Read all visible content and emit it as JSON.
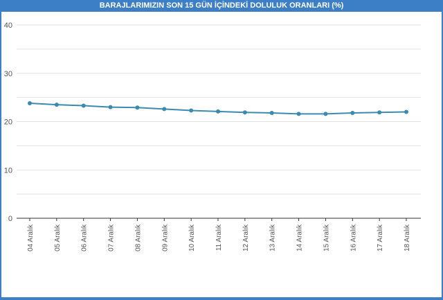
{
  "chart_data": {
    "type": "line",
    "title": "BARAJLARIMIZIN SON 15 GÜN İÇİNDEKİ DOLULUK ORANLARI (%)",
    "xlabel": "",
    "ylabel": "",
    "categories": [
      "04 Aralık",
      "05 Aralık",
      "06 Aralık",
      "07 Aralık",
      "08 Aralık",
      "09 Aralık",
      "10 Aralık",
      "11 Aralık",
      "12 Aralık",
      "13 Aralık",
      "14 Aralık",
      "15 Aralık",
      "16 Aralık",
      "17 Aralık",
      "18 Aralık"
    ],
    "series": [
      {
        "values": [
          23.8,
          23.5,
          23.3,
          23.0,
          22.9,
          22.6,
          22.3,
          22.1,
          21.9,
          21.8,
          21.6,
          21.6,
          21.8,
          21.9,
          22.0
        ]
      }
    ],
    "ylim": [
      0,
      40
    ],
    "yticks": [
      0,
      10,
      20,
      30,
      40
    ],
    "grid": true,
    "legend": "none",
    "colors": {
      "line": "#3b8ab0",
      "title_bar": "#3d7fc6",
      "grid": "#e2e2e2",
      "axis": "#333333",
      "tick_text": "#555555"
    }
  }
}
